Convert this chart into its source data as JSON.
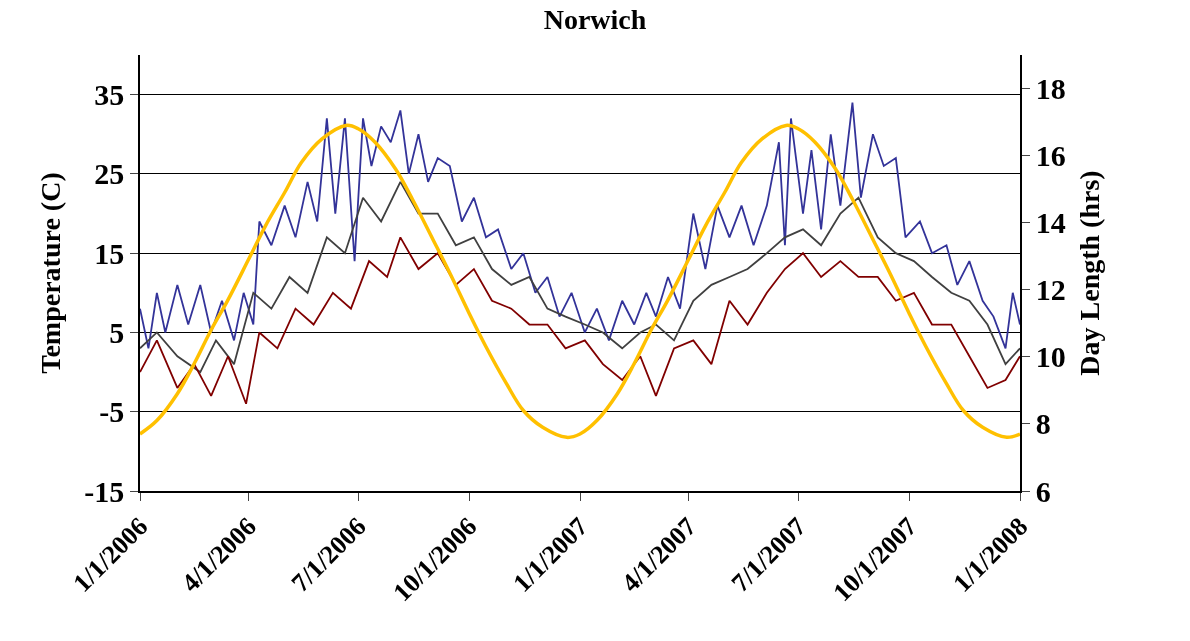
{
  "chart_data": {
    "type": "line",
    "title": "Norwich",
    "ylabel": "Temperature (C)",
    "y2label": "Day Length (hrs)",
    "xlim": [
      "2006-01-01",
      "2008-01-01"
    ],
    "xticks": [
      {
        "value": "2006-01-01",
        "label": "1/1/2006"
      },
      {
        "value": "2006-04-01",
        "label": "4/1/2006"
      },
      {
        "value": "2006-07-01",
        "label": "7/1/2006"
      },
      {
        "value": "2006-10-01",
        "label": "10/1/2006"
      },
      {
        "value": "2007-01-01",
        "label": "1/1/2007"
      },
      {
        "value": "2007-04-01",
        "label": "4/1/2007"
      },
      {
        "value": "2007-07-01",
        "label": "7/1/2007"
      },
      {
        "value": "2007-10-01",
        "label": "10/1/2007"
      },
      {
        "value": "2008-01-01",
        "label": "1/1/2008"
      }
    ],
    "ylim": [
      -15,
      40
    ],
    "yticks": [
      -15,
      -5,
      5,
      15,
      25,
      35
    ],
    "y2lim": [
      6,
      19
    ],
    "y2ticks": [
      6,
      8,
      10,
      12,
      14,
      16,
      18
    ],
    "grid": "y",
    "marker": "none",
    "line_style": "solid",
    "series": [
      {
        "color": "#333399",
        "x": [
          "2006-01-01",
          "2006-01-08",
          "2006-01-15",
          "2006-01-22",
          "2006-02-01",
          "2006-02-10",
          "2006-02-20",
          "2006-03-01",
          "2006-03-10",
          "2006-03-20",
          "2006-03-28",
          "2006-04-05",
          "2006-04-10",
          "2006-04-20",
          "2006-05-01",
          "2006-05-10",
          "2006-05-20",
          "2006-05-28",
          "2006-06-05",
          "2006-06-12",
          "2006-06-20",
          "2006-06-28",
          "2006-07-05",
          "2006-07-12",
          "2006-07-20",
          "2006-07-28",
          "2006-08-05",
          "2006-08-12",
          "2006-08-20",
          "2006-08-28",
          "2006-09-05",
          "2006-09-15",
          "2006-09-25",
          "2006-10-05",
          "2006-10-15",
          "2006-10-25",
          "2006-11-05",
          "2006-11-15",
          "2006-11-25",
          "2006-12-05",
          "2006-12-15",
          "2006-12-25",
          "2007-01-05",
          "2007-01-15",
          "2007-01-25",
          "2007-02-05",
          "2007-02-15",
          "2007-02-25",
          "2007-03-05",
          "2007-03-15",
          "2007-03-25",
          "2007-04-05",
          "2007-04-15",
          "2007-04-25",
          "2007-05-05",
          "2007-05-15",
          "2007-05-25",
          "2007-06-05",
          "2007-06-15",
          "2007-06-20",
          "2007-06-25",
          "2007-07-05",
          "2007-07-12",
          "2007-07-20",
          "2007-07-28",
          "2007-08-05",
          "2007-08-15",
          "2007-08-22",
          "2007-09-01",
          "2007-09-10",
          "2007-09-20",
          "2007-09-28",
          "2007-10-10",
          "2007-10-20",
          "2007-11-01",
          "2007-11-10",
          "2007-11-20",
          "2007-12-01",
          "2007-12-10",
          "2007-12-20",
          "2007-12-26",
          "2008-01-01"
        ],
        "values": [
          8,
          3,
          10,
          5,
          11,
          6,
          11,
          5,
          9,
          4,
          10,
          6,
          19,
          16,
          21,
          17,
          24,
          19,
          32,
          20,
          32,
          14,
          32,
          26,
          31,
          29,
          33,
          25,
          30,
          24,
          27,
          26,
          19,
          22,
          17,
          18,
          13,
          15,
          10,
          12,
          7,
          10,
          5,
          8,
          4,
          9,
          6,
          10,
          7,
          12,
          8,
          20,
          13,
          21,
          17,
          21,
          16,
          21,
          29,
          16,
          32,
          20,
          28,
          18,
          30,
          21,
          34,
          22,
          30,
          26,
          27,
          17,
          19,
          15,
          16,
          11,
          14,
          9,
          7,
          3,
          10,
          6
        ]
      },
      {
        "color": "#404040",
        "x": [
          "2006-01-01",
          "2006-01-15",
          "2006-02-01",
          "2006-02-20",
          "2006-03-05",
          "2006-03-20",
          "2006-04-05",
          "2006-04-20",
          "2006-05-05",
          "2006-05-20",
          "2006-06-05",
          "2006-06-20",
          "2006-07-05",
          "2006-07-20",
          "2006-08-05",
          "2006-08-20",
          "2006-09-05",
          "2006-09-20",
          "2006-10-05",
          "2006-10-20",
          "2006-11-05",
          "2006-11-20",
          "2006-12-05",
          "2006-12-20",
          "2007-01-05",
          "2007-01-20",
          "2007-02-05",
          "2007-02-20",
          "2007-03-05",
          "2007-03-20",
          "2007-04-05",
          "2007-04-20",
          "2007-05-05",
          "2007-05-20",
          "2007-06-05",
          "2007-06-20",
          "2007-07-05",
          "2007-07-20",
          "2007-08-05",
          "2007-08-20",
          "2007-09-05",
          "2007-09-20",
          "2007-10-05",
          "2007-10-20",
          "2007-11-05",
          "2007-11-20",
          "2007-12-05",
          "2007-12-20",
          "2008-01-01"
        ],
        "values": [
          3,
          5,
          2,
          0,
          4,
          1,
          10,
          8,
          12,
          10,
          17,
          15,
          22,
          19,
          24,
          20,
          20,
          16,
          17,
          13,
          11,
          12,
          8,
          7,
          6,
          5,
          3,
          5,
          6,
          4,
          9,
          11,
          12,
          13,
          15,
          17,
          18,
          16,
          20,
          22,
          17,
          15,
          14,
          12,
          10,
          9,
          6,
          1,
          3
        ]
      },
      {
        "color": "#800000",
        "x": [
          "2006-01-01",
          "2006-01-15",
          "2006-02-01",
          "2006-02-15",
          "2006-03-01",
          "2006-03-15",
          "2006-03-30",
          "2006-04-10",
          "2006-04-25",
          "2006-05-10",
          "2006-05-25",
          "2006-06-10",
          "2006-06-25",
          "2006-07-10",
          "2006-07-25",
          "2006-08-05",
          "2006-08-20",
          "2006-09-05",
          "2006-09-20",
          "2006-10-05",
          "2006-10-20",
          "2006-11-05",
          "2006-11-20",
          "2006-12-05",
          "2006-12-20",
          "2007-01-05",
          "2007-01-20",
          "2007-02-05",
          "2007-02-20",
          "2007-03-05",
          "2007-03-20",
          "2007-04-05",
          "2007-04-20",
          "2007-05-05",
          "2007-05-20",
          "2007-06-05",
          "2007-06-20",
          "2007-07-05",
          "2007-07-20",
          "2007-08-05",
          "2007-08-20",
          "2007-09-05",
          "2007-09-20",
          "2007-10-05",
          "2007-10-20",
          "2007-11-05",
          "2007-11-20",
          "2007-12-05",
          "2007-12-20",
          "2008-01-01"
        ],
        "values": [
          0,
          4,
          -2,
          1,
          -3,
          2,
          -4,
          5,
          3,
          8,
          6,
          10,
          8,
          14,
          12,
          17,
          13,
          15,
          11,
          13,
          9,
          8,
          6,
          6,
          3,
          4,
          1,
          -1,
          2,
          -3,
          3,
          4,
          1,
          9,
          6,
          10,
          13,
          15,
          12,
          14,
          12,
          12,
          9,
          10,
          6,
          6,
          2,
          -2,
          -1,
          2
        ]
      },
      {
        "color": "#ffc000",
        "axis": "y2",
        "x": [
          "2006-01-01",
          "2006-01-15",
          "2006-02-01",
          "2006-02-15",
          "2006-03-01",
          "2006-03-15",
          "2006-04-01",
          "2006-04-15",
          "2006-05-01",
          "2006-05-15",
          "2006-06-01",
          "2006-06-21",
          "2006-07-01",
          "2006-07-15",
          "2006-08-01",
          "2006-08-15",
          "2006-09-01",
          "2006-09-15",
          "2006-10-01",
          "2006-10-15",
          "2006-11-01",
          "2006-11-15",
          "2006-12-01",
          "2006-12-21",
          "2007-01-01",
          "2007-01-15",
          "2007-02-01",
          "2007-02-15",
          "2007-03-01",
          "2007-03-15",
          "2007-04-01",
          "2007-04-15",
          "2007-05-01",
          "2007-05-15",
          "2007-06-01",
          "2007-06-21",
          "2007-07-01",
          "2007-07-15",
          "2007-08-01",
          "2007-08-15",
          "2007-09-01",
          "2007-09-15",
          "2007-10-01",
          "2007-10-15",
          "2007-11-01",
          "2007-11-15",
          "2007-12-01",
          "2007-12-21",
          "2008-01-01"
        ],
        "values": [
          7.7,
          8.1,
          8.9,
          9.8,
          10.8,
          11.7,
          12.9,
          13.9,
          14.9,
          15.8,
          16.5,
          16.9,
          16.8,
          16.4,
          15.6,
          14.7,
          13.5,
          12.5,
          11.3,
          10.3,
          9.2,
          8.4,
          7.9,
          7.6,
          7.7,
          8.1,
          8.9,
          9.8,
          10.8,
          11.7,
          12.9,
          13.9,
          14.9,
          15.8,
          16.5,
          16.9,
          16.8,
          16.4,
          15.6,
          14.7,
          13.5,
          12.5,
          11.3,
          10.3,
          9.2,
          8.4,
          7.9,
          7.6,
          7.7
        ]
      }
    ]
  }
}
